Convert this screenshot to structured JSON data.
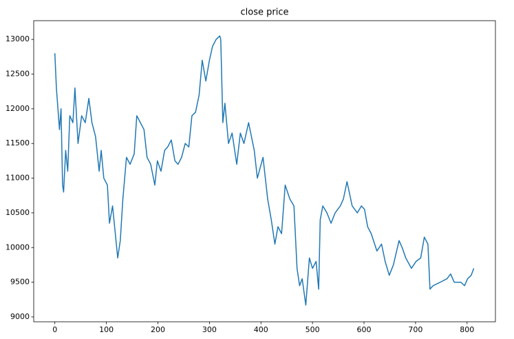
{
  "chart_data": {
    "type": "line",
    "title": "close price",
    "x": [
      0,
      3,
      7,
      9,
      12,
      15,
      17,
      21,
      25,
      29,
      35,
      39,
      45,
      52,
      59,
      66,
      72,
      79,
      86,
      90,
      95,
      102,
      106,
      112,
      116,
      122,
      127,
      132,
      139,
      146,
      154,
      159,
      166,
      173,
      179,
      186,
      194,
      199,
      206,
      213,
      219,
      226,
      233,
      239,
      246,
      253,
      260,
      266,
      273,
      280,
      286,
      293,
      300,
      306,
      313,
      320,
      322,
      326,
      330,
      337,
      344,
      353,
      360,
      367,
      376,
      387,
      393,
      404,
      413,
      420,
      427,
      433,
      440,
      447,
      456,
      464,
      470,
      475,
      480,
      487,
      494,
      500,
      507,
      512,
      515,
      520,
      528,
      536,
      544,
      554,
      560,
      567,
      577,
      587,
      595,
      601,
      607,
      614,
      625,
      634,
      641,
      649,
      657,
      668,
      674,
      681,
      692,
      701,
      710,
      717,
      724,
      728,
      734,
      748,
      761,
      768,
      775,
      788,
      795,
      801,
      808,
      813
    ],
    "series": [
      {
        "name": "close",
        "color": "#1f77b4",
        "values": [
          12800,
          12300,
          11900,
          11700,
          12000,
          10900,
          10800,
          11400,
          11100,
          11900,
          11800,
          12300,
          11500,
          11900,
          11800,
          12150,
          11800,
          11600,
          11100,
          11400,
          11000,
          10900,
          10350,
          10600,
          10300,
          9850,
          10100,
          10700,
          11300,
          11200,
          11350,
          11900,
          11800,
          11700,
          11300,
          11200,
          10900,
          11250,
          11100,
          11400,
          11450,
          11550,
          11250,
          11200,
          11300,
          11500,
          11450,
          11900,
          11950,
          12200,
          12700,
          12400,
          12700,
          12900,
          13000,
          13050,
          13000,
          11800,
          12080,
          11500,
          11650,
          11200,
          11650,
          11500,
          11800,
          11400,
          11000,
          11300,
          10700,
          10400,
          10050,
          10300,
          10200,
          10900,
          10700,
          10600,
          9700,
          9450,
          9550,
          9170,
          9850,
          9700,
          9800,
          9400,
          10400,
          10600,
          10500,
          10350,
          10500,
          10600,
          10700,
          10950,
          10600,
          10500,
          10600,
          10550,
          10300,
          10200,
          9950,
          10050,
          9800,
          9600,
          9750,
          10100,
          10000,
          9850,
          9700,
          9800,
          9850,
          10150,
          10050,
          9400,
          9450,
          9500,
          9550,
          9620,
          9500,
          9500,
          9450,
          9550,
          9600,
          9700
        ]
      }
    ],
    "xlim": [
      -41,
      855
    ],
    "ylim": [
      8930,
      13270
    ],
    "xticks": [
      0,
      100,
      200,
      300,
      400,
      500,
      600,
      700,
      800
    ],
    "yticks": [
      9000,
      9500,
      10000,
      10500,
      11000,
      11500,
      12000,
      12500,
      13000
    ]
  }
}
